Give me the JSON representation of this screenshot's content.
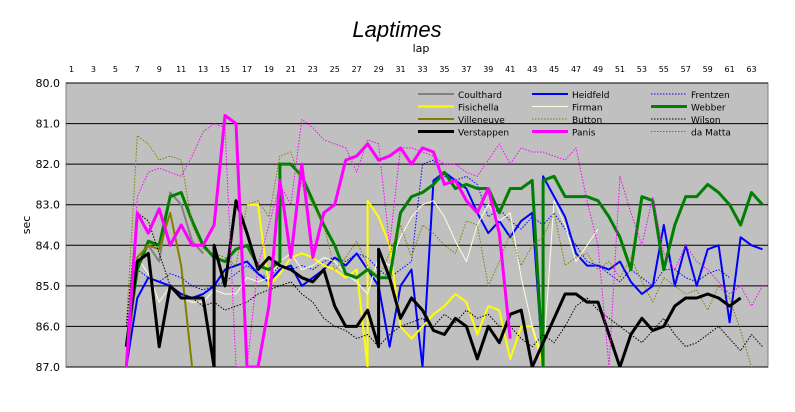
{
  "chart_data": {
    "type": "line",
    "title": "Laptimes",
    "xlabel": "lap",
    "ylabel": "sec",
    "x_ticks": [
      1,
      3,
      5,
      7,
      9,
      11,
      13,
      15,
      17,
      19,
      21,
      23,
      25,
      27,
      29,
      31,
      33,
      35,
      37,
      39,
      41,
      43,
      45,
      47,
      49,
      51,
      53,
      55,
      57,
      59,
      61,
      63
    ],
    "y_ticks": [
      "80.0",
      "81.0",
      "82.0",
      "83.0",
      "84.0",
      "85.0",
      "86.0",
      "87.0"
    ],
    "xlim": [
      1,
      64
    ],
    "ylim": [
      80,
      87
    ],
    "y_inverted": true,
    "grid": true,
    "legend_position": "top-right",
    "plot_background": "#c0c0c0",
    "series": [
      {
        "name": "Coulthard",
        "color": "#808080",
        "width": 2,
        "dash": "solid",
        "x": [
          6,
          7,
          8,
          9,
          10,
          11,
          12,
          13
        ],
        "y": [
          87.0,
          84.5,
          84.0,
          84.4,
          82.7,
          83.0,
          83.9,
          84.2
        ]
      },
      {
        "name": "Heidfeld",
        "color": "#0000ff",
        "width": 2,
        "dash": "solid",
        "x": [
          6,
          7,
          8,
          9,
          10,
          11,
          12,
          13,
          14,
          15,
          16,
          17,
          18,
          19,
          20,
          21,
          22,
          23,
          24,
          25,
          26,
          27,
          28,
          29,
          30,
          31,
          32,
          33,
          34,
          35,
          36,
          37,
          38,
          39,
          40,
          41,
          42,
          43,
          44,
          44,
          45,
          46,
          47,
          48,
          49,
          50,
          51,
          52,
          53,
          54,
          55,
          56,
          57,
          58,
          59,
          60,
          61,
          62,
          63,
          64
        ],
        "y": [
          87.0,
          85.3,
          84.8,
          84.9,
          85.0,
          85.2,
          85.3,
          85.2,
          85.0,
          84.6,
          84.5,
          84.4,
          84.7,
          84.9,
          84.6,
          84.5,
          85.0,
          84.8,
          84.6,
          84.3,
          84.5,
          84.2,
          84.6,
          85.0,
          86.5,
          85.0,
          84.6,
          87.0,
          82.4,
          82.2,
          82.4,
          82.6,
          83.2,
          83.7,
          83.4,
          83.8,
          83.4,
          83.2,
          87.0,
          82.3,
          82.8,
          83.3,
          84.2,
          84.5,
          84.5,
          84.6,
          84.4,
          84.9,
          85.2,
          85.0,
          83.5,
          85.0,
          84.0,
          85.0,
          84.1,
          84.0,
          85.9,
          83.8,
          84.0,
          84.1
        ]
      },
      {
        "name": "Frentzen",
        "color": "#0000ff",
        "width": 1,
        "dash": "dotted",
        "x": [
          6,
          7,
          8,
          9,
          10,
          11,
          12,
          13,
          14,
          15,
          16,
          17,
          18,
          19,
          20,
          21,
          22,
          23,
          24,
          25,
          26,
          27,
          28,
          29,
          30,
          31,
          32,
          33,
          34,
          35,
          36,
          37,
          38,
          39,
          40,
          41,
          42,
          43,
          44,
          45,
          46,
          47,
          48,
          49,
          50,
          51,
          52,
          53,
          54,
          55,
          56,
          57,
          58,
          59,
          60,
          61
        ],
        "y": [
          86.0,
          84.6,
          84.8,
          84.9,
          84.7,
          84.8,
          85.0,
          85.1,
          85.0,
          84.9,
          84.7,
          84.5,
          84.7,
          84.8,
          84.5,
          84.6,
          84.5,
          84.6,
          84.4,
          84.3,
          84.4,
          84.2,
          84.3,
          84.6,
          84.8,
          84.6,
          84.4,
          82.0,
          81.9,
          82.3,
          82.4,
          82.3,
          82.5,
          83.3,
          83.1,
          83.4,
          83.6,
          83.3,
          83.5,
          83.2,
          83.6,
          84.0,
          84.4,
          84.5,
          84.7,
          84.9,
          84.6,
          84.8,
          85.0,
          84.6,
          84.6,
          84.8,
          84.9,
          84.7,
          84.6,
          84.8
        ]
      },
      {
        "name": "Fisichella",
        "color": "#ffff00",
        "width": 2,
        "dash": "solid",
        "x": [
          17,
          18,
          19,
          20,
          21,
          22,
          23,
          24,
          25,
          26,
          27,
          28,
          28,
          29,
          30,
          31,
          32,
          33,
          34,
          35,
          36,
          37,
          38,
          39,
          40,
          41,
          42,
          43,
          44
        ],
        "y": [
          83.0,
          83.0,
          85.0,
          84.7,
          84.3,
          84.2,
          84.3,
          84.5,
          84.6,
          84.8,
          84.6,
          87.0,
          82.9,
          83.3,
          84.0,
          86.0,
          86.3,
          86.0,
          85.7,
          85.5,
          85.2,
          85.4,
          86.2,
          85.5,
          85.6,
          86.8,
          86.0,
          86.0,
          87.0
        ]
      },
      {
        "name": "Firman",
        "color": "#ffffe0",
        "width": 1,
        "dash": "solid",
        "x": [
          6,
          7,
          8,
          9,
          10,
          11,
          12,
          13,
          14,
          15,
          16,
          17,
          18,
          19,
          20,
          21,
          22,
          23,
          24,
          25,
          26,
          27,
          28,
          29,
          30,
          31,
          32,
          33,
          34,
          35,
          36,
          37,
          38,
          39,
          40,
          41,
          42,
          43,
          44,
          45,
          46,
          47,
          48,
          49
        ],
        "y": [
          87.0,
          84.3,
          84.7,
          85.4,
          85.0,
          85.3,
          85.4,
          85.4,
          85.1,
          85.2,
          85.2,
          84.8,
          84.9,
          84.8,
          84.4,
          84.2,
          84.6,
          84.5,
          84.3,
          84.4,
          84.7,
          84.9,
          85.2,
          84.3,
          84.5,
          83.8,
          83.3,
          83.0,
          82.9,
          83.3,
          83.9,
          84.4,
          83.5,
          83.0,
          83.4,
          83.2,
          84.8,
          86.0,
          86.8,
          82.9,
          83.5,
          84.4,
          84.0,
          83.6
        ]
      },
      {
        "name": "Webber",
        "color": "#008000",
        "width": 3,
        "dash": "solid",
        "x": [
          6,
          7,
          8,
          9,
          10,
          11,
          12,
          13,
          14,
          15,
          16,
          17,
          18,
          19,
          20,
          20,
          21,
          22,
          23,
          24,
          25,
          26,
          27,
          28,
          29,
          30,
          31,
          32,
          33,
          34,
          35,
          36,
          37,
          38,
          39,
          40,
          41,
          42,
          43,
          44,
          44,
          45,
          46,
          47,
          48,
          49,
          50,
          51,
          52,
          53,
          54,
          55,
          56,
          57,
          58,
          59,
          60,
          61,
          62,
          63,
          64
        ],
        "y": [
          86.5,
          84.6,
          83.9,
          84.0,
          82.8,
          82.7,
          83.4,
          84.0,
          84.3,
          84.4,
          84.1,
          84.0,
          84.5,
          84.6,
          84.4,
          82.0,
          82.0,
          82.3,
          82.9,
          83.5,
          84.0,
          84.7,
          84.8,
          84.6,
          84.8,
          84.8,
          83.2,
          82.8,
          82.7,
          82.5,
          82.2,
          82.6,
          82.5,
          82.6,
          82.6,
          83.2,
          82.6,
          82.6,
          82.4,
          87.0,
          82.4,
          82.3,
          82.8,
          82.8,
          82.8,
          82.9,
          83.3,
          83.8,
          84.6,
          82.8,
          82.9,
          84.6,
          83.5,
          82.8,
          82.8,
          82.5,
          82.7,
          83.0,
          83.5,
          82.7,
          83.0
        ]
      },
      {
        "name": "Villeneuve",
        "color": "#808000",
        "width": 2,
        "dash": "solid",
        "x": [
          6,
          7,
          8,
          9,
          10,
          11,
          12
        ],
        "y": [
          87.0,
          84.3,
          84.0,
          84.1,
          83.2,
          84.5,
          87.0
        ]
      },
      {
        "name": "Button",
        "color": "#808000",
        "width": 1,
        "dash": "dotted",
        "x": [
          6,
          7,
          8,
          9,
          10,
          11,
          12,
          13,
          14,
          15,
          16,
          17,
          18,
          19,
          20,
          21,
          22,
          23,
          24,
          25,
          26,
          27,
          28,
          29,
          30,
          31,
          32,
          33,
          34,
          35,
          36,
          37,
          38,
          39,
          40,
          41,
          42,
          43,
          44,
          45,
          46,
          47,
          48,
          49,
          50,
          51,
          52,
          53,
          54,
          55,
          56,
          57,
          58,
          59,
          60,
          61,
          62,
          63
        ],
        "y": [
          86.0,
          81.3,
          81.5,
          81.9,
          81.8,
          81.9,
          83.5,
          84.1,
          84.2,
          84.3,
          84.5,
          83.0,
          82.9,
          83.3,
          81.8,
          81.7,
          82.5,
          83.0,
          83.5,
          84.6,
          84.3,
          83.9,
          84.5,
          84.8,
          84.2,
          83.5,
          84.3,
          83.5,
          83.7,
          84.0,
          84.2,
          83.4,
          83.5,
          85.0,
          84.4,
          83.7,
          84.5,
          84.0,
          83.8,
          83.2,
          84.5,
          84.3,
          84.2,
          84.6,
          84.4,
          84.8,
          84.3,
          84.9,
          85.4,
          84.8,
          85.0,
          85.2,
          85.1,
          85.6,
          85.0,
          85.3,
          86.1,
          87.0
        ]
      },
      {
        "name": "Wilson",
        "color": "#000000",
        "width": 1,
        "dash": "dotted",
        "x": [
          6,
          7,
          8,
          9,
          10,
          11,
          12,
          13,
          14,
          15,
          16,
          17,
          18,
          19,
          20,
          21,
          22,
          23,
          24,
          25,
          26,
          27,
          28,
          29,
          30,
          31,
          32,
          33,
          34,
          35,
          36,
          37,
          38,
          39,
          40,
          41,
          42,
          43,
          44,
          45,
          46,
          47,
          48,
          49,
          50,
          51,
          52,
          53,
          54,
          55,
          56,
          57,
          58,
          59,
          60,
          61,
          62,
          63,
          64
        ],
        "y": [
          86.0,
          83.2,
          83.4,
          84.2,
          85.0,
          85.2,
          85.3,
          85.5,
          85.4,
          85.6,
          85.5,
          85.4,
          85.2,
          85.1,
          85.0,
          84.9,
          85.2,
          85.4,
          85.8,
          86.0,
          86.1,
          86.3,
          86.2,
          86.5,
          86.2,
          86.0,
          85.9,
          85.8,
          86.0,
          85.7,
          85.9,
          85.6,
          85.8,
          85.7,
          86.0,
          86.0,
          86.3,
          86.5,
          86.2,
          86.4,
          86.0,
          85.5,
          85.3,
          85.6,
          85.8,
          86.0,
          86.2,
          86.4,
          86.1,
          85.8,
          86.2,
          86.5,
          86.4,
          86.2,
          86.0,
          86.3,
          86.6,
          86.2,
          86.5
        ]
      },
      {
        "name": "Verstappen",
        "color": "#000000",
        "width": 3,
        "dash": "solid",
        "x": [
          6,
          7,
          8,
          9,
          10,
          11,
          12,
          13,
          14,
          14,
          15,
          16,
          17,
          18,
          19,
          20,
          21,
          22,
          23,
          24,
          25,
          26,
          27,
          28,
          29,
          29,
          30,
          31,
          32,
          33,
          34,
          35,
          36,
          37,
          38,
          39,
          40,
          41,
          42,
          43,
          46,
          47,
          48,
          49,
          50,
          51,
          52,
          53,
          54,
          55,
          56,
          57,
          58,
          59,
          60,
          61,
          62
        ],
        "y": [
          86.5,
          84.4,
          84.2,
          86.5,
          85.0,
          85.3,
          85.3,
          85.3,
          87.0,
          84.0,
          85.0,
          82.9,
          83.7,
          84.6,
          84.3,
          84.5,
          84.6,
          84.8,
          84.9,
          84.6,
          85.5,
          86.0,
          86.0,
          85.6,
          86.5,
          84.1,
          84.8,
          85.8,
          85.3,
          85.6,
          86.1,
          86.2,
          85.8,
          86.0,
          86.8,
          86.0,
          86.4,
          85.7,
          85.6,
          87.0,
          85.2,
          85.2,
          85.4,
          85.4,
          86.2,
          87.0,
          86.2,
          85.8,
          86.1,
          86.0,
          85.5,
          85.3,
          85.3,
          85.2,
          85.3,
          85.5,
          85.3
        ]
      },
      {
        "name": "Panis",
        "color": "#ff00ff",
        "width": 3,
        "dash": "solid",
        "x": [
          6,
          7,
          8,
          9,
          10,
          11,
          12,
          13,
          14,
          15,
          16,
          17,
          18,
          19,
          20,
          21,
          22,
          23,
          24,
          25,
          26,
          27,
          28,
          29,
          30,
          31,
          32,
          33,
          34,
          35,
          36,
          37,
          38,
          39,
          40,
          41
        ],
        "y": [
          87.0,
          83.2,
          83.7,
          83.1,
          84.0,
          83.5,
          84.0,
          84.0,
          83.5,
          80.8,
          81.0,
          87.0,
          87.0,
          85.5,
          82.4,
          84.3,
          82.0,
          84.3,
          83.2,
          83.0,
          81.9,
          81.8,
          81.5,
          81.9,
          81.8,
          81.6,
          82.0,
          81.6,
          81.7,
          82.5,
          82.4,
          82.9,
          83.2,
          82.6,
          83.7,
          86.3
        ]
      },
      {
        "name": "da Matta",
        "color": "#ff00ff",
        "width": 1,
        "dash": "dotted",
        "x": [
          6,
          7,
          8,
          9,
          10,
          11,
          12,
          13,
          14,
          15,
          16,
          17,
          18,
          19,
          20,
          21,
          22,
          23,
          24,
          25,
          26,
          27,
          28,
          29,
          30,
          31,
          32,
          33,
          34,
          35,
          36,
          37,
          38,
          39,
          40,
          41,
          42,
          43,
          44,
          45,
          46,
          47,
          48,
          49,
          50,
          51,
          52,
          53,
          54,
          55,
          56,
          57,
          58,
          59,
          60,
          61,
          62,
          63,
          64
        ],
        "y": [
          87.0,
          82.8,
          82.2,
          82.1,
          82.2,
          82.3,
          81.8,
          81.2,
          81.0,
          81.1,
          87.0,
          87.0,
          84.5,
          83.5,
          82.5,
          83.0,
          80.9,
          81.1,
          81.4,
          81.5,
          81.6,
          82.2,
          81.4,
          81.5,
          84.0,
          81.6,
          81.6,
          81.7,
          81.8,
          82.0,
          82.0,
          82.2,
          82.3,
          81.9,
          81.5,
          82.0,
          81.6,
          81.7,
          81.7,
          81.8,
          81.9,
          81.6,
          82.9,
          84.0,
          87.0,
          82.3,
          83.2,
          84.0,
          82.8,
          84.2,
          84.6,
          84.0,
          84.4,
          84.6,
          84.9,
          85.2,
          85.0,
          85.5,
          85.0
        ]
      }
    ]
  }
}
